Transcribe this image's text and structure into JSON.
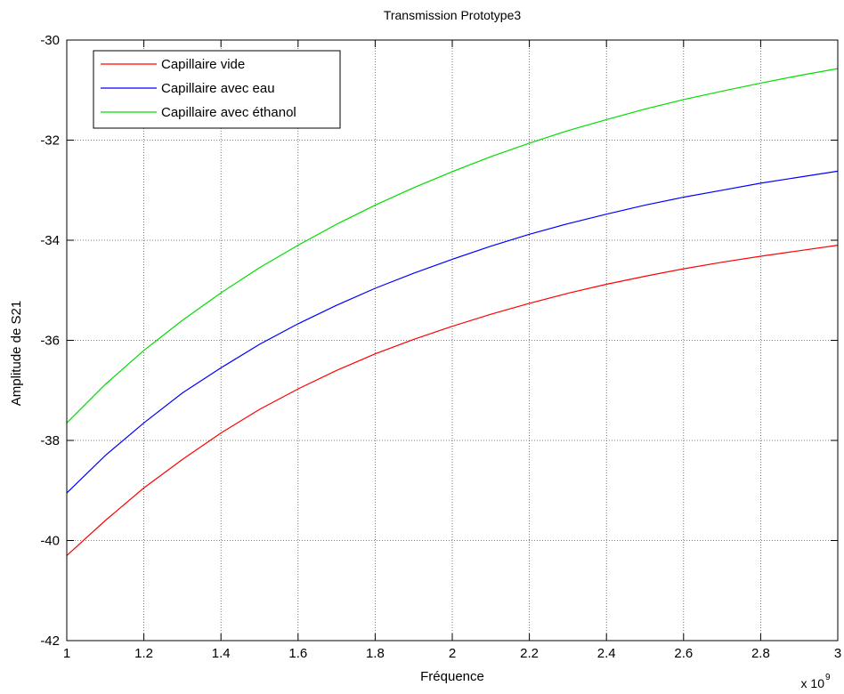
{
  "chart_data": {
    "type": "line",
    "title": "Transmission Prototype3",
    "xlabel": "Fréquence",
    "ylabel": "Amplitude de S21",
    "x_exponent_label": "x 10",
    "x_exponent_power": "9",
    "xlim": [
      1,
      3
    ],
    "ylim": [
      -42,
      -30
    ],
    "x_ticks": [
      1,
      1.2,
      1.4,
      1.6,
      1.8,
      2,
      2.2,
      2.4,
      2.6,
      2.8,
      3
    ],
    "x_tick_labels": [
      "1",
      "1.2",
      "1.4",
      "1.6",
      "1.8",
      "2",
      "2.2",
      "2.4",
      "2.6",
      "2.8",
      "3"
    ],
    "y_ticks": [
      -42,
      -40,
      -38,
      -36,
      -34,
      -32,
      -30
    ],
    "y_tick_labels": [
      "-42",
      "-40",
      "-38",
      "-36",
      "-34",
      "-32",
      "-30"
    ],
    "grid": true,
    "legend_position": "top-left",
    "x": [
      1.0,
      1.1,
      1.2,
      1.3,
      1.4,
      1.5,
      1.6,
      1.7,
      1.8,
      1.9,
      2.0,
      2.1,
      2.2,
      2.3,
      2.4,
      2.5,
      2.6,
      2.7,
      2.8,
      2.9,
      3.0
    ],
    "series": [
      {
        "name": "Capillaire vide",
        "color": "#ff0000",
        "values": [
          -40.3,
          -39.6,
          -38.95,
          -38.38,
          -37.85,
          -37.38,
          -36.97,
          -36.6,
          -36.27,
          -35.98,
          -35.72,
          -35.48,
          -35.26,
          -35.06,
          -34.88,
          -34.72,
          -34.57,
          -34.44,
          -34.32,
          -34.21,
          -34.1
        ]
      },
      {
        "name": "Capillaire avec eau",
        "color": "#0000ff",
        "values": [
          -39.05,
          -38.3,
          -37.65,
          -37.05,
          -36.55,
          -36.08,
          -35.67,
          -35.3,
          -34.96,
          -34.66,
          -34.38,
          -34.12,
          -33.88,
          -33.67,
          -33.48,
          -33.3,
          -33.14,
          -33.0,
          -32.86,
          -32.74,
          -32.62
        ]
      },
      {
        "name": "Capillaire avec éthanol",
        "color": "#00dd00",
        "values": [
          -37.65,
          -36.88,
          -36.2,
          -35.6,
          -35.05,
          -34.55,
          -34.1,
          -33.68,
          -33.3,
          -32.95,
          -32.63,
          -32.33,
          -32.06,
          -31.81,
          -31.59,
          -31.38,
          -31.19,
          -31.02,
          -30.86,
          -30.71,
          -30.57
        ]
      }
    ]
  }
}
